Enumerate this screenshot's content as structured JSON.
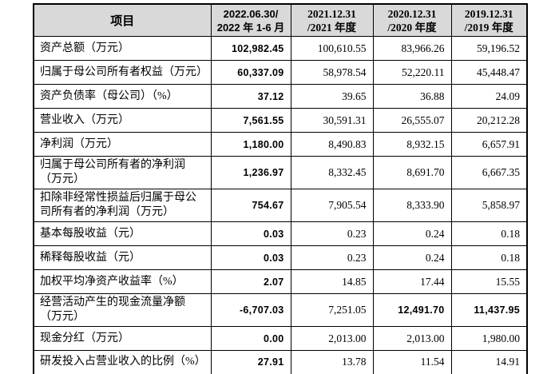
{
  "colors": {
    "page_bg": "#ffffff",
    "header_bg": "#d9d9d9",
    "border": "#000000",
    "text": "#000000"
  },
  "table": {
    "header": {
      "item_label": "项目",
      "periods": [
        {
          "line1": "2022.06.30/",
          "line2": "2022 年 1-6 月"
        },
        {
          "line1": "2021.12.31",
          "line2": "/2021 年度"
        },
        {
          "line1": "2020.12.31",
          "line2": "/2020 年度"
        },
        {
          "line1": "2019.12.31",
          "line2": "/2019 年度"
        }
      ]
    },
    "rows": [
      {
        "label": "资产总额（万元）",
        "values": [
          "102,982.45",
          "100,610.55",
          "83,966.26",
          "59,196.52"
        ],
        "bold": [
          true,
          false,
          false,
          false
        ],
        "tall": false
      },
      {
        "label": "归属于母公司所有者权益（万元）",
        "values": [
          "60,337.09",
          "58,978.54",
          "52,220.11",
          "45,448.47"
        ],
        "bold": [
          true,
          false,
          false,
          false
        ],
        "tall": false
      },
      {
        "label": "资产负债率（母公司）（%）",
        "values": [
          "37.12",
          "39.65",
          "36.88",
          "24.09"
        ],
        "bold": [
          true,
          false,
          false,
          false
        ],
        "tall": false
      },
      {
        "label": "营业收入（万元）",
        "values": [
          "7,561.55",
          "30,591.31",
          "26,555.07",
          "20,212.28"
        ],
        "bold": [
          true,
          false,
          false,
          false
        ],
        "tall": false
      },
      {
        "label": "净利润（万元）",
        "values": [
          "1,180.00",
          "8,490.83",
          "8,932.15",
          "6,657.91"
        ],
        "bold": [
          true,
          false,
          false,
          false
        ],
        "tall": false
      },
      {
        "label": "归属于母公司所有者的净利润（万元）",
        "values": [
          "1,236.97",
          "8,332.45",
          "8,691.70",
          "6,667.35"
        ],
        "bold": [
          true,
          false,
          false,
          false
        ],
        "tall": true
      },
      {
        "label": "扣除非经常性损益后归属于母公司所有者的净利润（万元）",
        "values": [
          "754.67",
          "7,905.54",
          "8,333.90",
          "5,858.97"
        ],
        "bold": [
          true,
          false,
          false,
          false
        ],
        "tall": true
      },
      {
        "label": "基本每股收益（元）",
        "values": [
          "0.03",
          "0.23",
          "0.24",
          "0.18"
        ],
        "bold": [
          true,
          false,
          false,
          false
        ],
        "tall": false
      },
      {
        "label": "稀释每股收益（元）",
        "values": [
          "0.03",
          "0.23",
          "0.24",
          "0.18"
        ],
        "bold": [
          true,
          false,
          false,
          false
        ],
        "tall": false
      },
      {
        "label": "加权平均净资产收益率（%）",
        "values": [
          "2.07",
          "14.85",
          "17.44",
          "15.55"
        ],
        "bold": [
          true,
          false,
          false,
          false
        ],
        "tall": false
      },
      {
        "label": "经营活动产生的现金流量净额（万元）",
        "values": [
          "-6,707.03",
          "7,251.05",
          "12,491.70",
          "11,437.95"
        ],
        "bold": [
          true,
          false,
          true,
          true
        ],
        "tall": true
      },
      {
        "label": "现金分红（万元）",
        "values": [
          "0.00",
          "2,013.00",
          "2,013.00",
          "1,980.00"
        ],
        "bold": [
          true,
          false,
          false,
          false
        ],
        "tall": false
      },
      {
        "label": "研发投入占营业收入的比例（%）",
        "values": [
          "27.91",
          "13.78",
          "11.54",
          "14.91"
        ],
        "bold": [
          true,
          false,
          false,
          false
        ],
        "tall": false
      }
    ]
  }
}
